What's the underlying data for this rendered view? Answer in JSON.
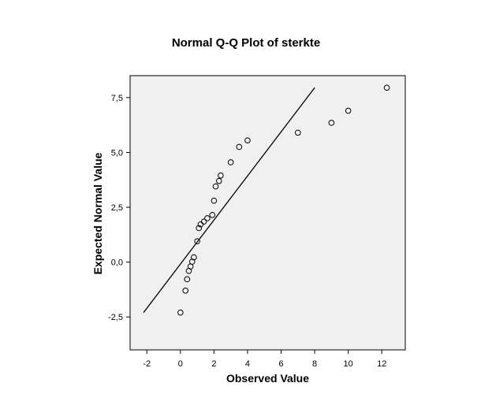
{
  "chart_data": {
    "type": "scatter",
    "title": "Normal Q-Q Plot of sterkte",
    "xlabel": "Observed Value",
    "ylabel": "Expected Normal Value",
    "xlim": [
      -3.0,
      13.4
    ],
    "ylim": [
      -4.0,
      8.5
    ],
    "xticks": [
      -2,
      0,
      2,
      4,
      6,
      8,
      10,
      12
    ],
    "xtick_labels": [
      "-2",
      "0",
      "2",
      "4",
      "6",
      "8",
      "10",
      "12"
    ],
    "yticks": [
      -2.5,
      0.0,
      2.5,
      5.0,
      7.5
    ],
    "ytick_labels": [
      "-2,5",
      "0,0",
      "2,5",
      "5,0",
      "7,5"
    ],
    "points": [
      {
        "x": 0.0,
        "y": -2.3
      },
      {
        "x": 0.3,
        "y": -1.3
      },
      {
        "x": 0.4,
        "y": -0.78
      },
      {
        "x": 0.5,
        "y": -0.4
      },
      {
        "x": 0.6,
        "y": -0.2
      },
      {
        "x": 0.7,
        "y": 0.02
      },
      {
        "x": 0.8,
        "y": 0.22
      },
      {
        "x": 1.0,
        "y": 0.95
      },
      {
        "x": 1.1,
        "y": 1.55
      },
      {
        "x": 1.2,
        "y": 1.72
      },
      {
        "x": 1.4,
        "y": 1.85
      },
      {
        "x": 1.6,
        "y": 2.0
      },
      {
        "x": 1.9,
        "y": 2.15
      },
      {
        "x": 2.0,
        "y": 2.8
      },
      {
        "x": 2.1,
        "y": 3.45
      },
      {
        "x": 2.3,
        "y": 3.7
      },
      {
        "x": 2.4,
        "y": 3.95
      },
      {
        "x": 3.0,
        "y": 4.55
      },
      {
        "x": 3.5,
        "y": 5.25
      },
      {
        "x": 4.0,
        "y": 5.55
      },
      {
        "x": 7.0,
        "y": 5.9
      },
      {
        "x": 9.0,
        "y": 6.35
      },
      {
        "x": 10.0,
        "y": 6.9
      },
      {
        "x": 12.3,
        "y": 7.95
      }
    ],
    "reference_line": {
      "x": [
        -2.2,
        8.0
      ],
      "y": [
        -2.3,
        7.95
      ]
    },
    "grid": false,
    "legend": "none",
    "colors": {
      "plot_background": "#f0f0f0",
      "marker": "#000000",
      "line": "#000000"
    }
  }
}
